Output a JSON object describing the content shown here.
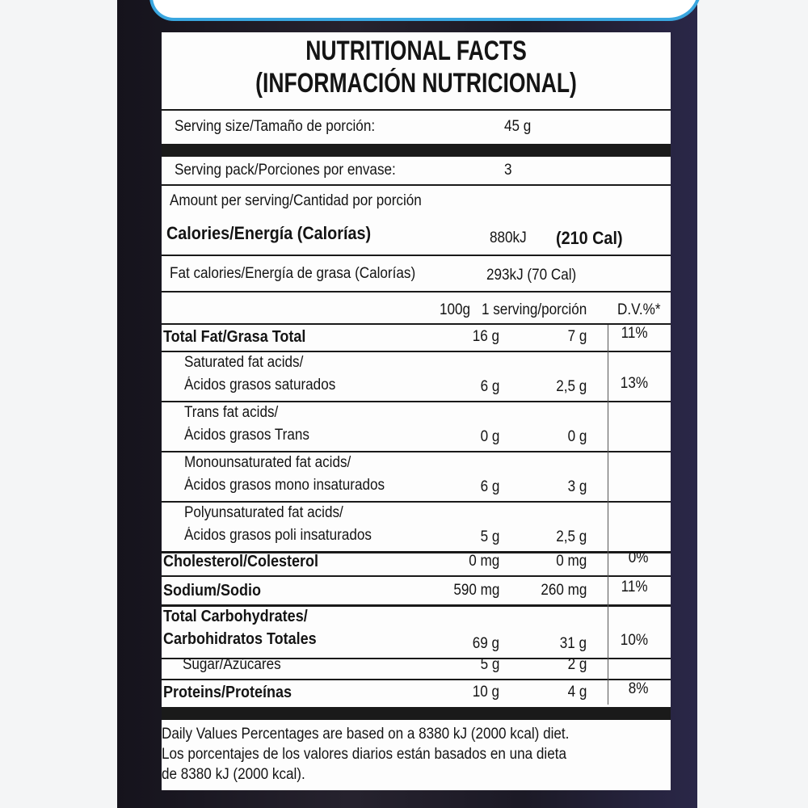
{
  "title": "NUTRITIONAL FACTS",
  "subtitle": "(INFORMACIÓN NUTRICIONAL)",
  "serving_size": {
    "label": "Serving size/Tamaño de porción:",
    "value": "45 g"
  },
  "serving_pack": {
    "label": "Serving pack/Porciones por envase:",
    "value": "3"
  },
  "amount_per_serving": "Amount per serving/Cantidad por porción",
  "calories": {
    "label": "Calories/Energía (Calorías)",
    "kj": "880kJ",
    "cal": "(210 Cal)"
  },
  "fat_calories": {
    "label": "Fat calories/Energía de grasa (Calorías)",
    "value": "293kJ (70 Cal)"
  },
  "columns": {
    "per100": "100g",
    "serving": "1 serving/porción",
    "dv": "D.V.%*"
  },
  "rows": [
    {
      "line1": "Total Fat/Grasa Total",
      "line2": "",
      "per100": "16 g",
      "serving": "7 g",
      "dv": "11%",
      "bold": true
    },
    {
      "line1": "Saturated fat acids/",
      "line2": "Ácidos grasos saturados",
      "per100": "6 g",
      "serving": "2,5 g",
      "dv": "13%"
    },
    {
      "line1": "Trans fat acids/",
      "line2": "Ácidos grasos Trans",
      "per100": "0 g",
      "serving": "0 g",
      "dv": ""
    },
    {
      "line1": "Monounsaturated fat acids/",
      "line2": "Ácidos grasos mono insaturados",
      "per100": "6 g",
      "serving": "3 g",
      "dv": ""
    },
    {
      "line1": "Polyunsaturated fat acids/",
      "line2": "Ácidos grasos poli insaturados",
      "per100": "5 g",
      "serving": "2,5 g",
      "dv": ""
    },
    {
      "line1": "Cholesterol/Colesterol",
      "line2": "",
      "per100": "0 mg",
      "serving": "0 mg",
      "dv": "0%",
      "bold": true
    },
    {
      "line1": "Sodium/Sodio",
      "line2": "",
      "per100": "590 mg",
      "serving": "260 mg",
      "dv": "11%",
      "bold": true
    },
    {
      "line1": "Total Carbohydrates/",
      "line2": "Carbohidratos Totales",
      "per100": "69 g",
      "serving": "31 g",
      "dv": "10%",
      "bold": true
    },
    {
      "line1": "Sugar/Azúcares",
      "line2": "",
      "per100": "5 g",
      "serving": "2 g",
      "dv": ""
    },
    {
      "line1": "Proteins/Proteínas",
      "line2": "",
      "per100": "10 g",
      "serving": "4 g",
      "dv": "8%",
      "bold": true
    }
  ],
  "footnote": [
    "Daily Values Percentages are based on a 8380 kJ (2000 kcal) diet.",
    "Los porcentajes de los valores diarios están basados en una dieta",
    "de 8380 kJ (2000 kcal)."
  ],
  "colors": {
    "bag": "#1e1b27",
    "accent_band": "#3aa7e0",
    "panel": "#fdfdfd"
  }
}
